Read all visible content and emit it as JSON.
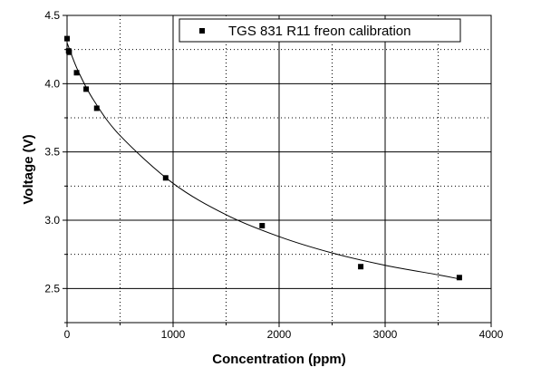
{
  "chart_data": {
    "type": "scatter",
    "xlabel": "Concentration (ppm)",
    "ylabel": "Voltage (V)",
    "xlim": [
      0,
      4000
    ],
    "ylim": [
      2.25,
      4.5
    ],
    "x_ticks": [
      0,
      1000,
      2000,
      3000,
      4000
    ],
    "y_ticks": [
      2.5,
      3.0,
      3.5,
      4.0,
      4.5
    ],
    "x_tick_labels": [
      "0",
      "1000",
      "2000",
      "3000",
      "4000"
    ],
    "y_tick_labels": [
      "2.5",
      "3.0",
      "3.5",
      "4.0",
      "4.5"
    ],
    "x_minor_step": 500,
    "y_minor_step": 0.25,
    "grid": true,
    "legend_position": "top-right",
    "series": [
      {
        "name": "TGS 831 R11 freon calibration",
        "marker": "square",
        "color": "#000000",
        "points": [
          {
            "x": 0,
            "y": 4.33
          },
          {
            "x": 15,
            "y": 4.24
          },
          {
            "x": 20,
            "y": 4.23
          },
          {
            "x": 90,
            "y": 4.08
          },
          {
            "x": 180,
            "y": 3.96
          },
          {
            "x": 280,
            "y": 3.82
          },
          {
            "x": 930,
            "y": 3.31
          },
          {
            "x": 1840,
            "y": 2.96
          },
          {
            "x": 2770,
            "y": 2.66
          },
          {
            "x": 3700,
            "y": 2.58
          }
        ]
      }
    ],
    "fit_curve": {
      "color": "#000000",
      "points": [
        {
          "x": 0,
          "y": 4.3
        },
        {
          "x": 100,
          "y": 4.1
        },
        {
          "x": 250,
          "y": 3.88
        },
        {
          "x": 500,
          "y": 3.62
        },
        {
          "x": 1000,
          "y": 3.27
        },
        {
          "x": 1500,
          "y": 3.04
        },
        {
          "x": 2000,
          "y": 2.88
        },
        {
          "x": 2500,
          "y": 2.76
        },
        {
          "x": 3000,
          "y": 2.67
        },
        {
          "x": 3500,
          "y": 2.6
        },
        {
          "x": 3700,
          "y": 2.57
        }
      ]
    }
  }
}
